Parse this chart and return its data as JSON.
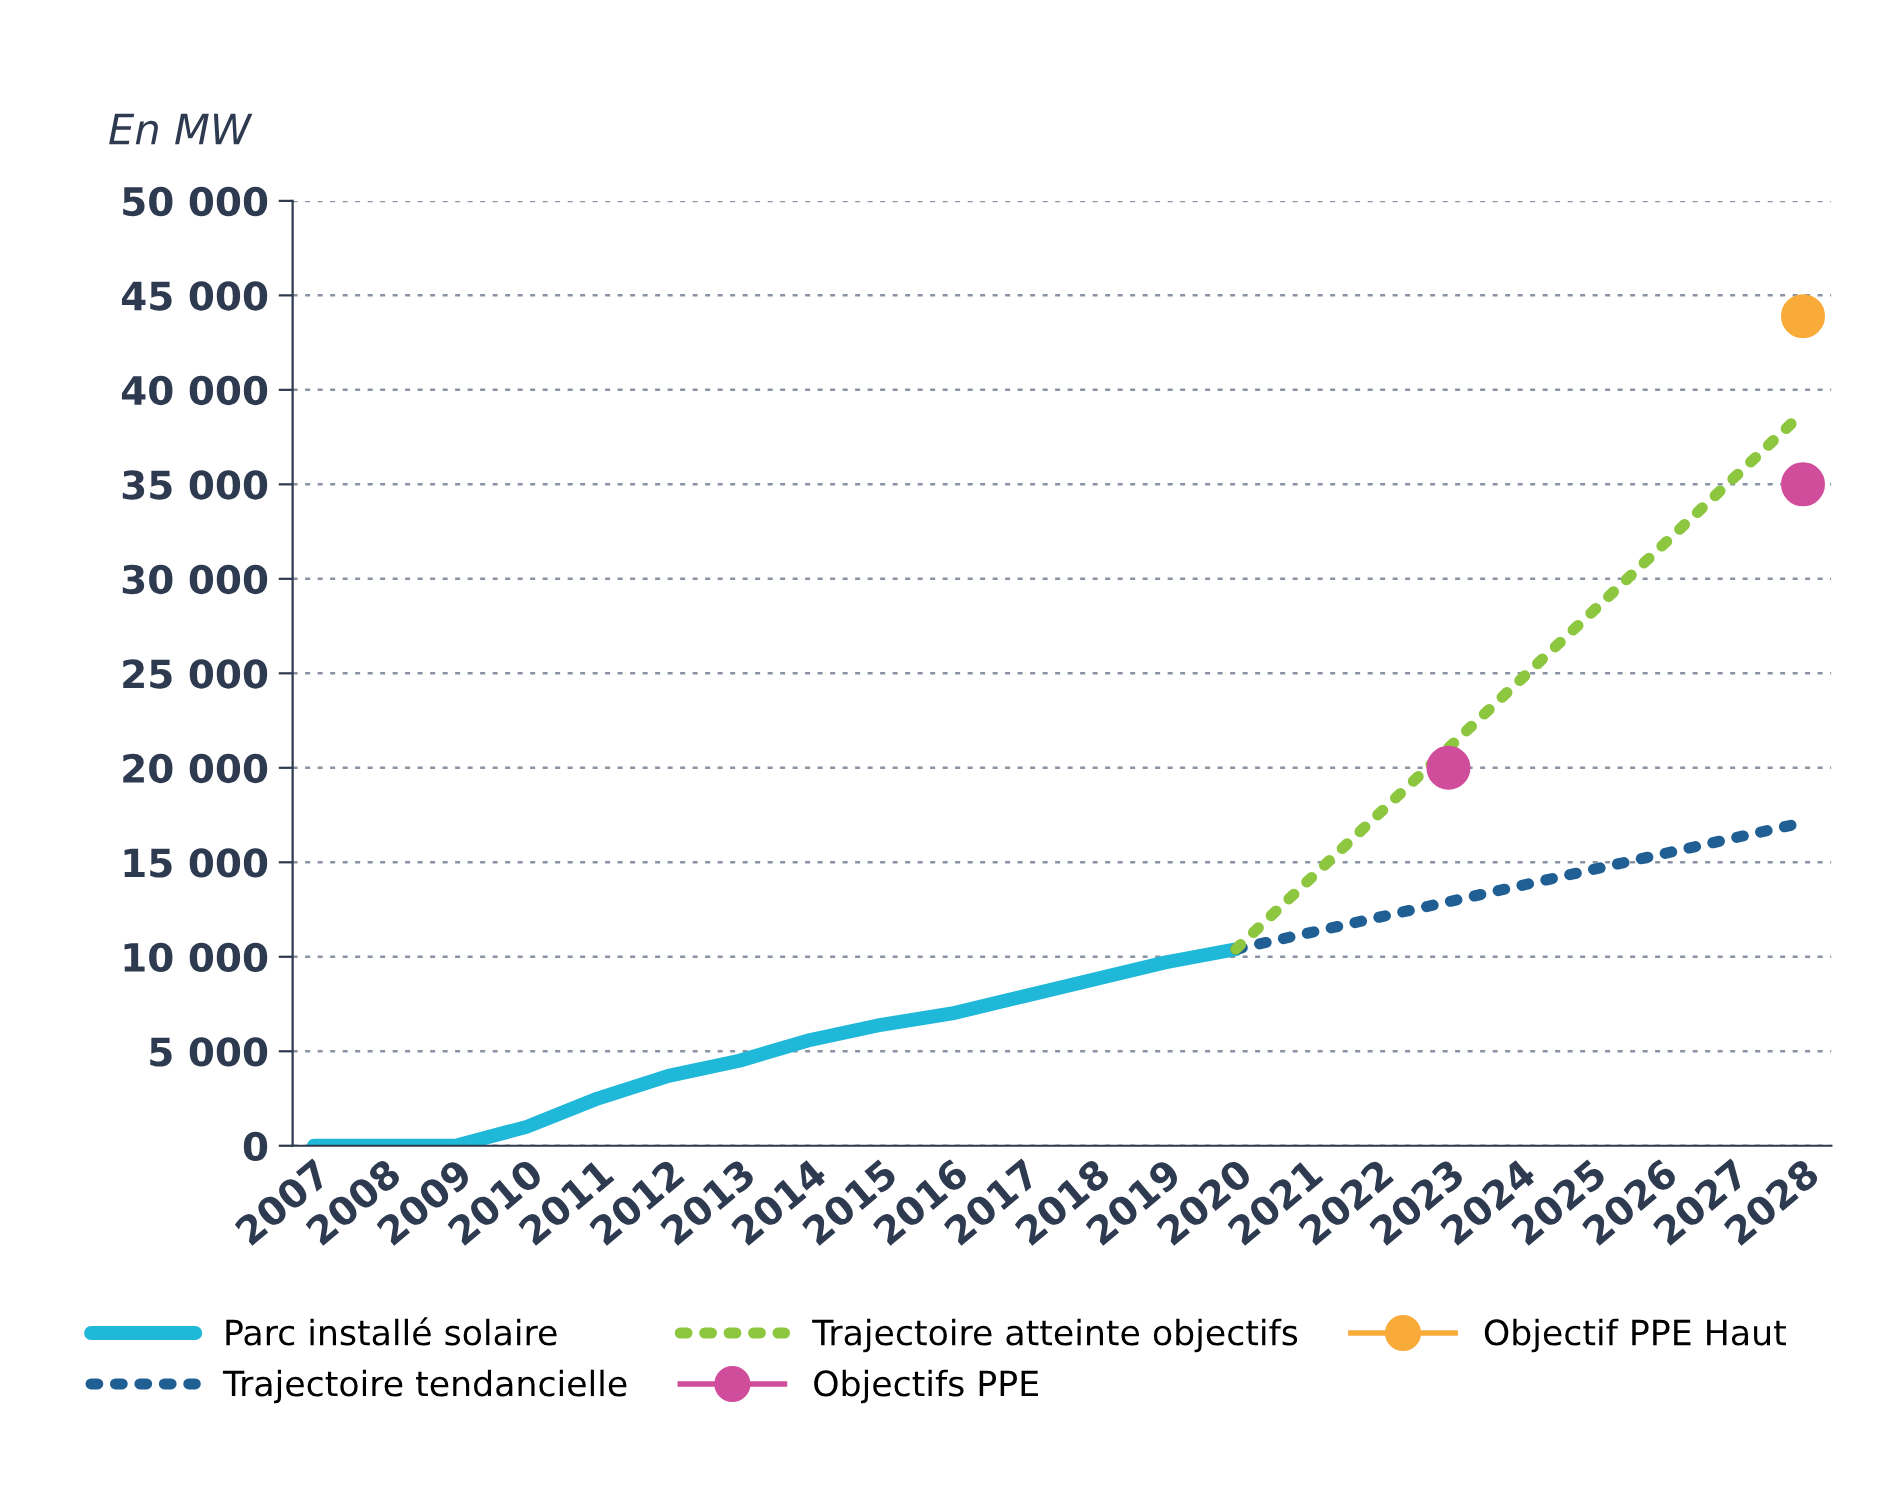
{
  "chart_data": {
    "type": "line",
    "ylabel": "En MW",
    "series": [
      {
        "name": "Parc installé solaire",
        "color": "#1fb8d8",
        "line_style": "solid",
        "x": [
          2007,
          2008,
          2009,
          2010,
          2011,
          2012,
          2013,
          2014,
          2015,
          2016,
          2017,
          2018,
          2019,
          2020
        ],
        "values": [
          0,
          0,
          0,
          1000,
          2500,
          3700,
          4500,
          5600,
          6400,
          7000,
          7900,
          8800,
          9700,
          10400
        ]
      },
      {
        "name": "Trajectoire tendancielle",
        "color": "#1f5f94",
        "line_style": "dotted",
        "x": [
          2020,
          2028
        ],
        "values": [
          10400,
          17100
        ]
      },
      {
        "name": "Trajectoire atteinte objectifs",
        "color": "#8dc63f",
        "line_style": "dotted",
        "x": [
          2020,
          2028
        ],
        "values": [
          10400,
          38800
        ]
      },
      {
        "name": "Objectifs PPE",
        "type": "scatter",
        "color": "#d04d9c",
        "marker": "circle",
        "x": [
          2023,
          2028
        ],
        "values": [
          20000,
          35000
        ]
      },
      {
        "name": "Objectif PPE Haut",
        "type": "scatter",
        "color": "#f9ab3a",
        "marker": "circle",
        "x": [
          2028
        ],
        "values": [
          43900
        ]
      }
    ],
    "xlim": [
      2006.7,
      2028.4
    ],
    "xticks": [
      2007,
      2008,
      2009,
      2010,
      2011,
      2012,
      2013,
      2014,
      2015,
      2016,
      2017,
      2018,
      2019,
      2020,
      2021,
      2022,
      2023,
      2024,
      2025,
      2026,
      2027,
      2028
    ],
    "ylim": [
      0,
      50000
    ],
    "yticks": [
      0,
      {
        "value": 5000,
        "label": "5 000"
      },
      {
        "value": 10000,
        "label": "10 000"
      },
      {
        "value": 15000,
        "label": "15 000"
      },
      {
        "value": 20000,
        "label": "20 000"
      },
      {
        "value": 25000,
        "label": "25 000"
      },
      {
        "value": 30000,
        "label": "30 000"
      },
      {
        "value": 35000,
        "label": "35 000"
      },
      {
        "value": 40000,
        "label": "40 000"
      },
      {
        "value": 45000,
        "label": "45 000"
      },
      {
        "value": 50000,
        "label": "50 000"
      }
    ],
    "grid": "y",
    "legend": "bottom"
  }
}
